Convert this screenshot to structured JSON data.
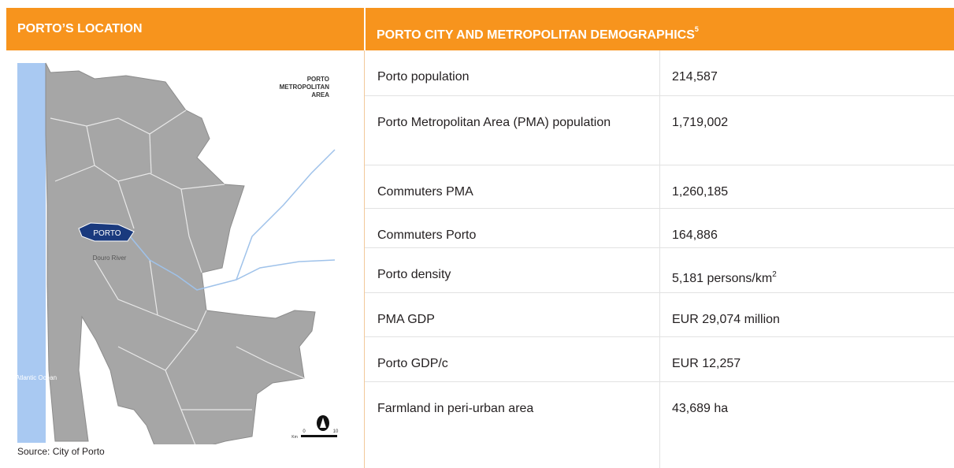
{
  "left": {
    "header": "PORTO’S LOCATION",
    "map": {
      "title": [
        "PORTO",
        "METROPOLITAN",
        "AREA"
      ],
      "city": "PORTO",
      "river": "Douro River",
      "ocean": "Atlantic Ocean",
      "scale": {
        "start": "0",
        "end": "10",
        "unit": "Km"
      }
    },
    "source": "Source: City of Porto"
  },
  "right": {
    "header": "PORTO CITY AND METROPOLITAN DEMOGRAPHICS",
    "footnote": "5",
    "rows": [
      {
        "label": "Porto population",
        "value": "214,587"
      },
      {
        "label": "Porto Metropolitan Area (PMA) population",
        "value": "1,719,002"
      },
      {
        "label": "Commuters PMA",
        "value": "1,260,185"
      },
      {
        "label": "Commuters Porto",
        "value": "164,886"
      },
      {
        "label": "Porto density",
        "value": "5,181 persons/km",
        "superscript": "2"
      },
      {
        "label": "PMA GDP",
        "value": "EUR 29,074 million"
      },
      {
        "label": "Porto GDP/c",
        "value": "EUR 12,257"
      },
      {
        "label": "Farmland in peri-urban area",
        "value": "43,689 ha"
      }
    ]
  }
}
